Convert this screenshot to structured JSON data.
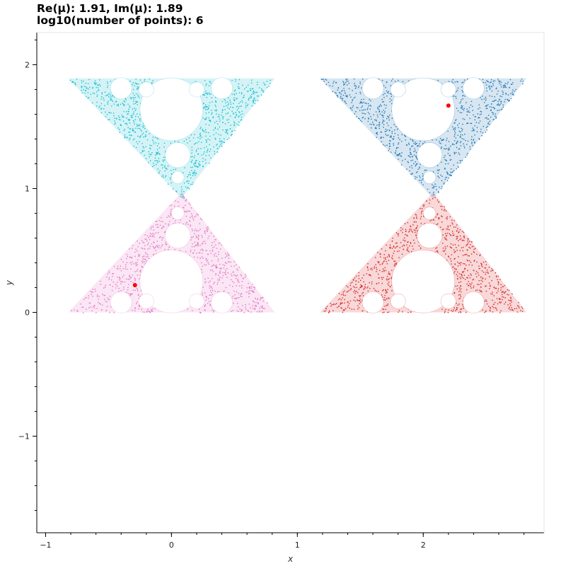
{
  "title": {
    "line1": "Re(μ): 1.91, Im(μ): 1.89",
    "line2": "log10(number of points): 6"
  },
  "chart_data": {
    "type": "scatter",
    "title": "Re(μ): 1.91, Im(μ): 1.89 / log10(number of points): 6",
    "xlabel": "x",
    "ylabel": "y",
    "xlim": [
      -1.07,
      2.96
    ],
    "ylim": [
      -1.78,
      2.26
    ],
    "x_ticks": [
      -1,
      0,
      1,
      2
    ],
    "y_ticks": [
      -1,
      0,
      1,
      2
    ],
    "x_tick_labels": [
      "−1",
      "0",
      "1",
      "2"
    ],
    "y_tick_labels": [
      "−1",
      "0",
      "1",
      "2"
    ],
    "grid": false,
    "mu": {
      "re": 1.91,
      "im": 1.89
    },
    "log10_points": 6,
    "series": [
      {
        "color": "#e377c2",
        "offset": [
          0,
          0
        ],
        "orientation": "up"
      },
      {
        "color": "#d62728",
        "offset": [
          2,
          0
        ],
        "orientation": "up"
      },
      {
        "color": "#17becf",
        "offset": [
          0,
          1.89
        ],
        "orientation": "down"
      },
      {
        "color": "#1f77b4",
        "offset": [
          2,
          1.89
        ],
        "orientation": "down"
      }
    ],
    "highlight_points": [
      {
        "x": -0.29,
        "y": 0.22,
        "color": "#ff0000"
      },
      {
        "x": 2.2,
        "y": 1.67,
        "color": "#ff0000"
      }
    ]
  }
}
